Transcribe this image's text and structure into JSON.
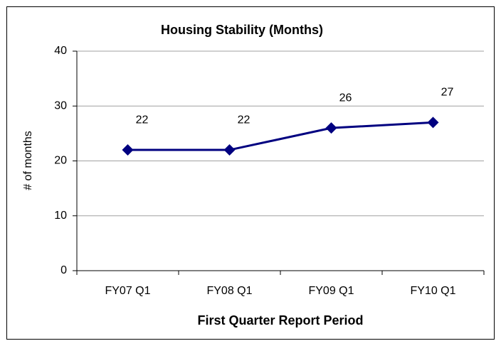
{
  "chart_data": {
    "type": "line",
    "title": "Housing Stability (Months)",
    "x_label": "First Quarter Report Period",
    "y_label": "# of months",
    "categories": [
      "FY07 Q1",
      "FY08 Q1",
      "FY09 Q1",
      "FY10 Q1"
    ],
    "series": [
      {
        "name": "Housing Stability",
        "color": "#000080",
        "values": [
          22,
          22,
          26,
          27
        ]
      }
    ],
    "ylim": [
      0,
      40
    ],
    "yticks": [
      0,
      10,
      20,
      30,
      40
    ],
    "grid": true,
    "data_labels": true
  }
}
